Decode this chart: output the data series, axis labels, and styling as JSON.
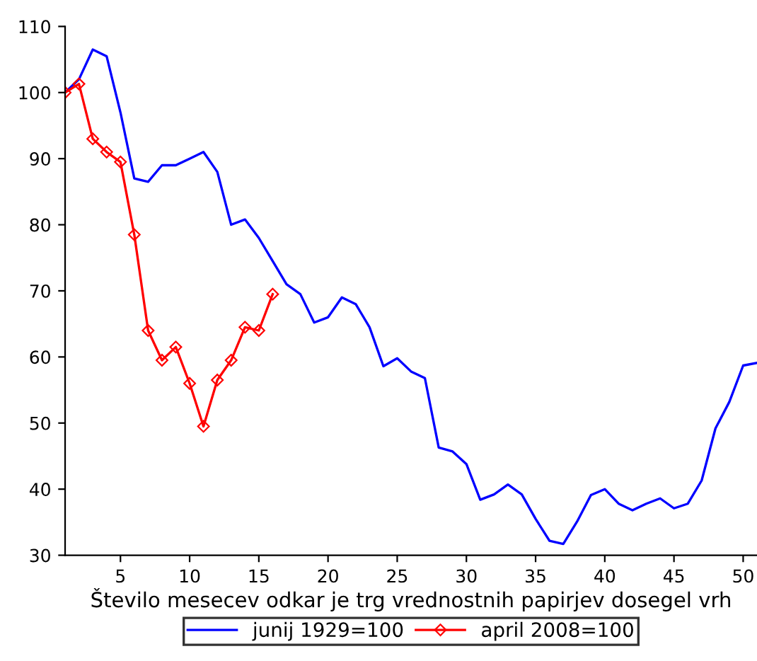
{
  "chart_data": {
    "type": "line",
    "xlabel": "Število mesecev odkar je trg vrednostnih papirjev dosegel vrh",
    "xlim": [
      1,
      51
    ],
    "ylim": [
      30,
      110
    ],
    "xticks": [
      5,
      10,
      15,
      20,
      25,
      30,
      35,
      40,
      45,
      50
    ],
    "yticks": [
      30,
      40,
      50,
      60,
      70,
      80,
      90,
      100,
      110
    ],
    "grid": false,
    "legend": "bottom",
    "line_style": "solid",
    "series": [
      {
        "name": "junij 1929=100",
        "color": "#0000ff",
        "marker": "none",
        "x": [
          1,
          2,
          3,
          4,
          5,
          6,
          7,
          8,
          9,
          10,
          11,
          12,
          13,
          14,
          15,
          16,
          17,
          18,
          19,
          20,
          21,
          22,
          23,
          24,
          25,
          26,
          27,
          28,
          29,
          30,
          31,
          32,
          33,
          34,
          35,
          36,
          37,
          38,
          39,
          40,
          41,
          42,
          43,
          44,
          45,
          46,
          47,
          48,
          49,
          50,
          51
        ],
        "values": [
          100,
          102,
          106.5,
          105.5,
          97,
          87,
          86.5,
          89,
          89,
          90,
          91,
          88,
          80,
          80.8,
          78,
          74.5,
          71,
          69.5,
          65.2,
          66,
          69,
          68,
          64.5,
          58.6,
          59.8,
          57.8,
          56.8,
          46.3,
          45.7,
          43.8,
          38.4,
          39.2,
          40.7,
          39.2,
          35.5,
          32.2,
          31.7,
          35.1,
          39.1,
          40,
          37.8,
          36.8,
          37.8,
          38.6,
          37.1,
          37.8,
          41.3,
          49.2,
          53.2,
          58.7,
          59.1
        ]
      },
      {
        "name": "april 2008=100",
        "color": "#ff0000",
        "marker": "diamond",
        "x": [
          1,
          2,
          3,
          4,
          5,
          6,
          7,
          8,
          9,
          10,
          11,
          12,
          13,
          14,
          15,
          16
        ],
        "values": [
          100,
          101.3,
          93,
          91,
          89.5,
          78.5,
          64,
          59.5,
          61.5,
          56,
          49.5,
          56.5,
          59.5,
          64.5,
          64,
          69.5
        ]
      }
    ]
  }
}
